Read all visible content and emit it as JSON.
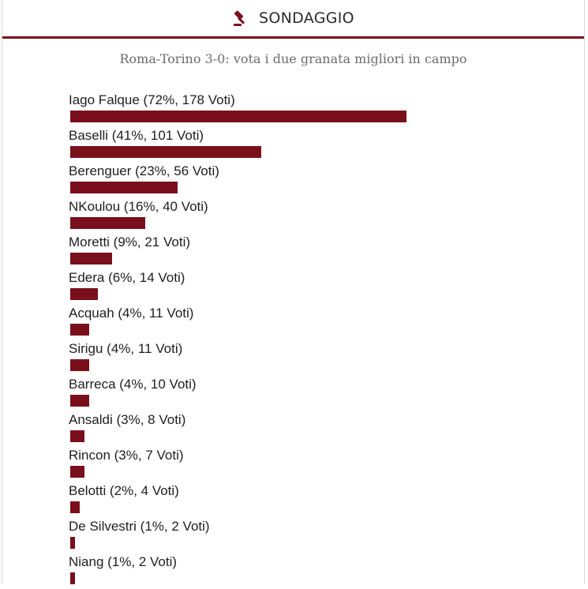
{
  "poll": {
    "header_title": "SONDAGGIO",
    "icon": "gavel-icon",
    "question": "Roma-Torino 3-0: vota i due granata migliori in campo",
    "bar_color": "#7a0f1c",
    "answers": [
      {
        "label": "Iago Falque (72%, 178 Voti)",
        "percent": 72
      },
      {
        "label": "Baselli (41%, 101 Voti)",
        "percent": 41
      },
      {
        "label": "Berenguer (23%, 56 Voti)",
        "percent": 23
      },
      {
        "label": "NKoulou (16%, 40 Voti)",
        "percent": 16
      },
      {
        "label": "Moretti (9%, 21 Voti)",
        "percent": 9
      },
      {
        "label": "Edera (6%, 14 Voti)",
        "percent": 6
      },
      {
        "label": "Acquah (4%, 11 Voti)",
        "percent": 4
      },
      {
        "label": "Sirigu (4%, 11 Voti)",
        "percent": 4
      },
      {
        "label": "Barreca (4%, 10 Voti)",
        "percent": 4
      },
      {
        "label": "Ansaldi (3%, 8 Voti)",
        "percent": 3
      },
      {
        "label": "Rincon (3%, 7 Voti)",
        "percent": 3
      },
      {
        "label": "Belotti (2%, 4 Voti)",
        "percent": 2
      },
      {
        "label": "De Silvestri (1%, 2 Voti)",
        "percent": 1
      },
      {
        "label": "Niang (1%, 2 Voti)",
        "percent": 1
      }
    ]
  }
}
